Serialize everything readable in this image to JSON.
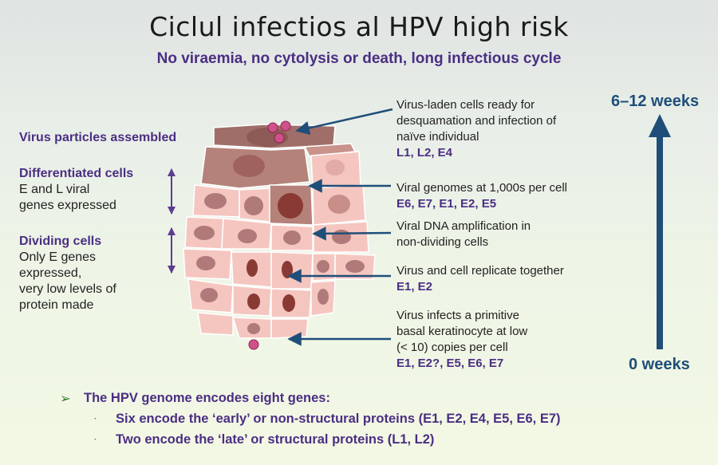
{
  "title": "Ciclul infectios al HPV high risk",
  "subtitle": "No viraemia, no cytolysis or death, long infectious cycle",
  "left_labels": {
    "assembled": "Virus particles assembled",
    "differentiated_heading": "Differentiated cells",
    "differentiated_lines": [
      "E and L viral",
      "genes expressed"
    ],
    "dividing_heading": "Dividing cells",
    "dividing_lines": [
      "Only E genes",
      "expressed,",
      "very low levels of",
      "protein made"
    ]
  },
  "right_labels": [
    {
      "lines": [
        "Virus-laden cells ready for",
        "desquamation and infection of",
        "naïve individual"
      ],
      "genes": "L1, L2, E4"
    },
    {
      "lines": [
        "Viral genomes at 1,000s per cell"
      ],
      "genes": "E6, E7, E1, E2, E5"
    },
    {
      "lines": [
        "Viral DNA amplification in",
        "non-dividing cells"
      ],
      "genes": ""
    },
    {
      "lines": [
        "Virus and cell replicate together"
      ],
      "genes": "E1, E2"
    },
    {
      "lines": [
        "Virus infects a primitive",
        "basal keratinocyte at low",
        "(< 10) copies per cell"
      ],
      "genes": "E1, E2?, E5, E6, E7"
    }
  ],
  "timeline": {
    "top": "6–12 weeks",
    "bottom": "0 weeks"
  },
  "bullets": {
    "main": "The HPV genome encodes eight genes:",
    "sub": [
      "Six encode the ‘early’ or non-structural proteins (E1, E2, E4, E5, E6, E7)",
      "Two encode the ‘late’ or structural proteins (L1, L2)"
    ]
  },
  "colors": {
    "heading": "#4b2e83",
    "arrow": "#1f4e79",
    "bullet_marker": "#3a7a28",
    "cell_fill": "#f5c6c0",
    "cell_dark": "#b5827a",
    "nucleus": "#b07a7a",
    "virus": "#d0518a"
  },
  "icons": {
    "bullet": "arrowhead-bullet",
    "sub_bullet": "dot-bullet"
  }
}
